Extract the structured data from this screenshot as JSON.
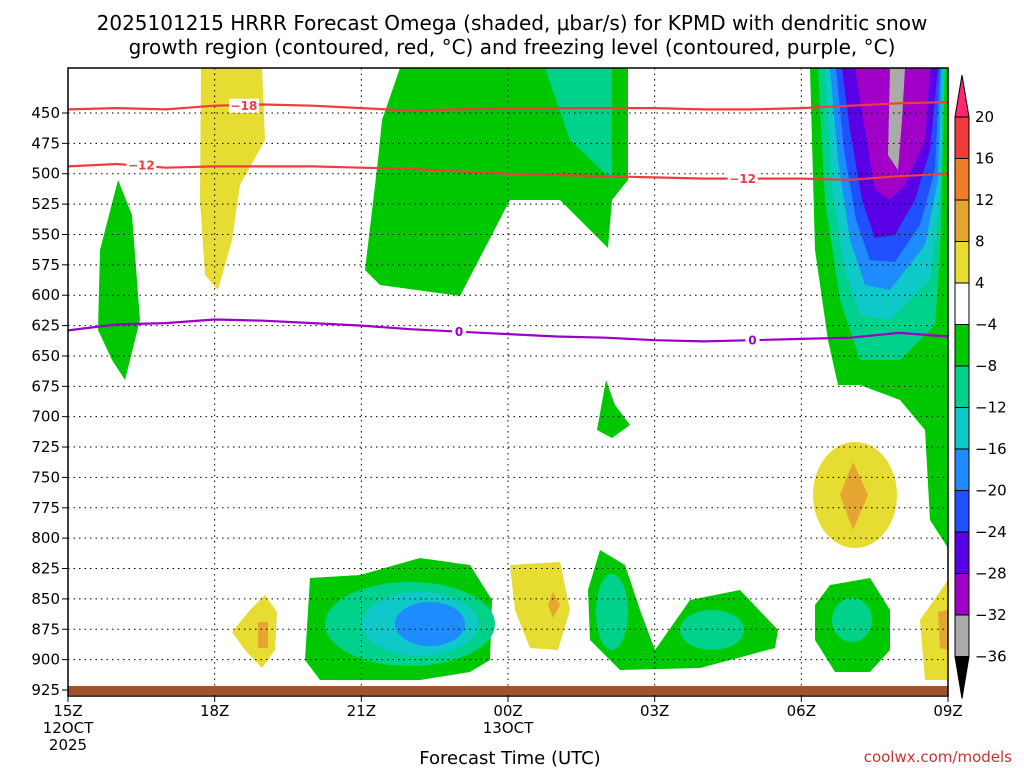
{
  "chart_data": {
    "type": "time-height contour",
    "title_line1": "2025101215 HRRR Forecast Omega (shaded, μbar/s) for KPMD with dendritic snow",
    "title_line2": "growth region (contoured, red, °C) and freezing level (contoured, purple, °C)",
    "xlabel": "Forecast Time (UTC)",
    "x_ticks": [
      {
        "label": "15Z",
        "sub": [
          "12OCT",
          "2025"
        ],
        "hour": 0
      },
      {
        "label": "18Z",
        "sub": [],
        "hour": 3
      },
      {
        "label": "21Z",
        "sub": [],
        "hour": 6
      },
      {
        "label": "00Z",
        "sub": [
          "13OCT"
        ],
        "hour": 9
      },
      {
        "label": "03Z",
        "sub": [],
        "hour": 12
      },
      {
        "label": "06Z",
        "sub": [],
        "hour": 15
      },
      {
        "label": "09Z",
        "sub": [],
        "hour": 18
      }
    ],
    "x_range_hours": [
      0,
      18
    ],
    "y_ticks": [
      450,
      475,
      500,
      525,
      550,
      575,
      600,
      625,
      650,
      675,
      700,
      725,
      750,
      775,
      800,
      825,
      850,
      875,
      900,
      925
    ],
    "y_range_hpa": [
      425,
      930
    ],
    "colorbar": {
      "levels": [
        20,
        16,
        12,
        8,
        4,
        -4,
        -8,
        -12,
        -16,
        -20,
        -24,
        -28,
        -32,
        -36
      ],
      "colors": [
        "#ff2870",
        "#f03c3c",
        "#f07d28",
        "#e6a532",
        "#e6dc32",
        "#ffffff",
        "#00c800",
        "#00d28c",
        "#0fc8c8",
        "#1e8cff",
        "#2050ff",
        "#5a00e6",
        "#a000c8",
        "#aaaaaa",
        "#000000"
      ]
    },
    "contours": [
      {
        "name": "-18 C isotherm",
        "color": "#f03c3c",
        "label": "-18",
        "points": [
          [
            0,
            447
          ],
          [
            1,
            446
          ],
          [
            2,
            447
          ],
          [
            3,
            444
          ],
          [
            4,
            443
          ],
          [
            5,
            444
          ],
          [
            6,
            446
          ],
          [
            7,
            448
          ],
          [
            8,
            447
          ],
          [
            9,
            446
          ],
          [
            10,
            446
          ],
          [
            11,
            446
          ],
          [
            12,
            446
          ],
          [
            13,
            447
          ],
          [
            14,
            447
          ],
          [
            15,
            446
          ],
          [
            16,
            444
          ],
          [
            17,
            442
          ],
          [
            18,
            441
          ]
        ]
      },
      {
        "name": "-12 C isotherm",
        "color": "#f03c3c",
        "label": "-12",
        "points": [
          [
            0,
            494
          ],
          [
            1,
            492
          ],
          [
            2,
            495
          ],
          [
            3,
            494
          ],
          [
            4,
            494
          ],
          [
            5,
            494
          ],
          [
            6,
            495
          ],
          [
            7,
            496
          ],
          [
            8,
            498
          ],
          [
            9,
            500
          ],
          [
            10,
            501
          ],
          [
            11,
            502
          ],
          [
            12,
            503
          ],
          [
            13,
            504
          ],
          [
            14,
            504
          ],
          [
            15,
            504
          ],
          [
            16,
            505
          ],
          [
            17,
            502
          ],
          [
            18,
            500
          ]
        ]
      },
      {
        "name": "0 C freezing level",
        "color": "#9b00c8",
        "label": "0",
        "points": [
          [
            0,
            629
          ],
          [
            1,
            624
          ],
          [
            2,
            623
          ],
          [
            3,
            620
          ],
          [
            4,
            621
          ],
          [
            5,
            623
          ],
          [
            6,
            625
          ],
          [
            7,
            628
          ],
          [
            8,
            630
          ],
          [
            9,
            632
          ],
          [
            10,
            634
          ],
          [
            11,
            635
          ],
          [
            12,
            637
          ],
          [
            13,
            638
          ],
          [
            14,
            637
          ],
          [
            15,
            636
          ],
          [
            16,
            635
          ],
          [
            17,
            631
          ],
          [
            18,
            634
          ]
        ]
      }
    ],
    "labels": [
      {
        "text": "−18",
        "hour": 3.6,
        "hpa": 444,
        "color": "#f03c3c"
      },
      {
        "text": "−12",
        "hour": 1.5,
        "hpa": 493,
        "color": "#f03c3c"
      },
      {
        "text": "−12",
        "hour": 13.8,
        "hpa": 504,
        "color": "#f03c3c"
      },
      {
        "text": "0",
        "hour": 8.0,
        "hpa": 630,
        "color": "#9b00c8"
      },
      {
        "text": "0",
        "hour": 14.0,
        "hpa": 637,
        "color": "#9b00c8"
      }
    ],
    "surface_hpa": 925
  },
  "credit": "coolwx.com/models"
}
